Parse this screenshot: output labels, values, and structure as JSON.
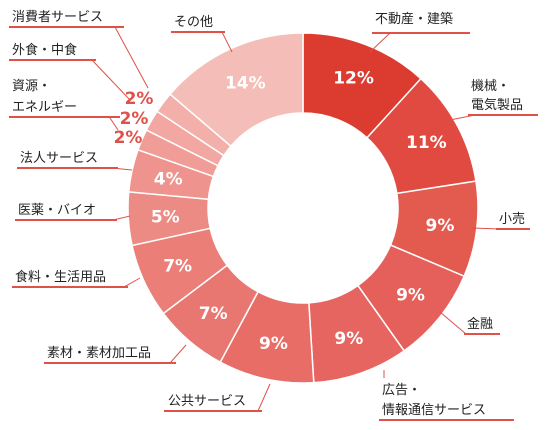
{
  "chart_data": {
    "type": "pie",
    "variant": "donut",
    "title": "",
    "unit": "%",
    "slices": [
      {
        "label": "不動産・建築",
        "value": 12,
        "display": "12%",
        "color": "#dc3b2f"
      },
      {
        "label": "機械・電気製品",
        "value": 11,
        "display": "11%",
        "color": "#e04a40"
      },
      {
        "label": "小売",
        "value": 9,
        "display": "9%",
        "color": "#e35a4f"
      },
      {
        "label": "金融",
        "value": 9,
        "display": "9%",
        "color": "#e5605a"
      },
      {
        "label": "広告・情報通信サービス",
        "value": 9,
        "display": "9%",
        "color": "#e66560"
      },
      {
        "label": "公共サービス",
        "value": 9,
        "display": "9%",
        "color": "#e76d66"
      },
      {
        "label": "素材・素材加工品",
        "value": 7,
        "display": "7%",
        "color": "#e97771"
      },
      {
        "label": "食料・生活用品",
        "value": 7,
        "display": "7%",
        "color": "#eb7f78"
      },
      {
        "label": "医薬・バイオ",
        "value": 5,
        "display": "5%",
        "color": "#ec8a84"
      },
      {
        "label": "法人サービス",
        "value": 4,
        "display": "4%",
        "color": "#ee938d"
      },
      {
        "label": "資源・エネルギー",
        "value": 2,
        "display": "2%",
        "color": "#f09d97"
      },
      {
        "label": "外食・中食",
        "value": 2,
        "display": "2%",
        "color": "#f2a7a2"
      },
      {
        "label": "消費者サービス",
        "value": 2,
        "display": "2%",
        "color": "#f3b0ab"
      },
      {
        "label": "その他",
        "value": 14,
        "display": "14%",
        "color": "#f5bdb8"
      }
    ]
  }
}
